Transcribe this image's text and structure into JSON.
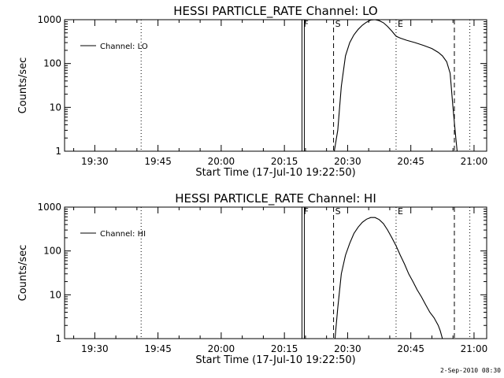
{
  "chart_data": [
    {
      "type": "line",
      "title": "HESSI PARTICLE_RATE Channel: LO",
      "xlabel": "Start Time (17-Jul-10 19:22:50)",
      "ylabel": "Counts/sec",
      "x_ticks": [
        "19:30",
        "19:45",
        "20:00",
        "20:15",
        "20:30",
        "20:45",
        "21:00"
      ],
      "y_ticks": [
        "1",
        "10",
        "100",
        "1000"
      ],
      "xlim": [
        "19:22:50",
        "21:03:00"
      ],
      "ylim": [
        1,
        1000
      ],
      "yscale": "log",
      "legend_label": "Channel: LO",
      "legend_position": "top-left",
      "markers": [
        {
          "label": "F",
          "time": "20:19:10",
          "style": "solid"
        },
        {
          "label": "S",
          "time": "20:26:40",
          "style": "dashed"
        },
        {
          "label": "E",
          "time": "20:41:30",
          "style": "dotted"
        }
      ],
      "extra_lines": [
        {
          "time": "19:41:00",
          "style": "dotted"
        },
        {
          "time": "20:55:20",
          "style": "dashed"
        },
        {
          "time": "20:59:00",
          "style": "dotted"
        }
      ],
      "series": [
        {
          "x": [
            "20:26:50",
            "20:27:40",
            "20:28:30",
            "20:29:30",
            "20:30:30",
            "20:31:30",
            "20:32:30",
            "20:33:30",
            "20:34:30",
            "20:35:30",
            "20:36:30",
            "20:37:30",
            "20:38:30",
            "20:39:30",
            "20:40:30",
            "20:41:30",
            "20:42:30",
            "20:44:00",
            "20:46:00",
            "20:48:00",
            "20:50:00",
            "20:51:30",
            "20:52:30",
            "20:53:30",
            "20:54:20",
            "20:55:00",
            "20:55:40",
            "20:56:00"
          ],
          "y": [
            1,
            3,
            30,
            150,
            300,
            450,
            600,
            750,
            880,
            980,
            1000,
            950,
            850,
            700,
            550,
            420,
            380,
            340,
            300,
            260,
            220,
            180,
            150,
            110,
            60,
            10,
            2,
            1
          ]
        }
      ]
    },
    {
      "type": "line",
      "title": "HESSI PARTICLE_RATE Channel: HI",
      "xlabel": "Start Time (17-Jul-10 19:22:50)",
      "ylabel": "Counts/sec",
      "x_ticks": [
        "19:30",
        "19:45",
        "20:00",
        "20:15",
        "20:30",
        "20:45",
        "21:00"
      ],
      "y_ticks": [
        "1",
        "10",
        "100",
        "1000"
      ],
      "xlim": [
        "19:22:50",
        "21:03:00"
      ],
      "ylim": [
        1,
        1000
      ],
      "yscale": "log",
      "legend_label": "Channel: HI",
      "legend_position": "top-left",
      "markers": [
        {
          "label": "F",
          "time": "20:19:10",
          "style": "solid"
        },
        {
          "label": "S",
          "time": "20:26:40",
          "style": "dashed"
        },
        {
          "label": "E",
          "time": "20:41:30",
          "style": "dotted"
        }
      ],
      "extra_lines": [
        {
          "time": "19:41:00",
          "style": "dotted"
        },
        {
          "time": "20:55:20",
          "style": "dashed"
        },
        {
          "time": "20:59:00",
          "style": "dotted"
        }
      ],
      "series": [
        {
          "x": [
            "20:27:00",
            "20:27:40",
            "20:28:30",
            "20:29:30",
            "20:30:30",
            "20:31:30",
            "20:32:30",
            "20:33:30",
            "20:34:30",
            "20:35:30",
            "20:36:30",
            "20:37:30",
            "20:38:30",
            "20:39:30",
            "20:40:30",
            "20:41:30",
            "20:42:30",
            "20:43:30",
            "20:44:30",
            "20:45:30",
            "20:46:30",
            "20:47:30",
            "20:48:30",
            "20:49:30",
            "20:50:30",
            "20:51:30",
            "20:52:00",
            "20:52:30"
          ],
          "y": [
            1,
            5,
            30,
            80,
            150,
            250,
            350,
            450,
            530,
            580,
            580,
            520,
            420,
            300,
            200,
            130,
            80,
            50,
            30,
            20,
            13,
            9,
            6,
            4,
            3,
            2,
            1.5,
            1
          ]
        }
      ]
    }
  ],
  "footer": {
    "stamp": "2-Sep-2010 08:30"
  }
}
